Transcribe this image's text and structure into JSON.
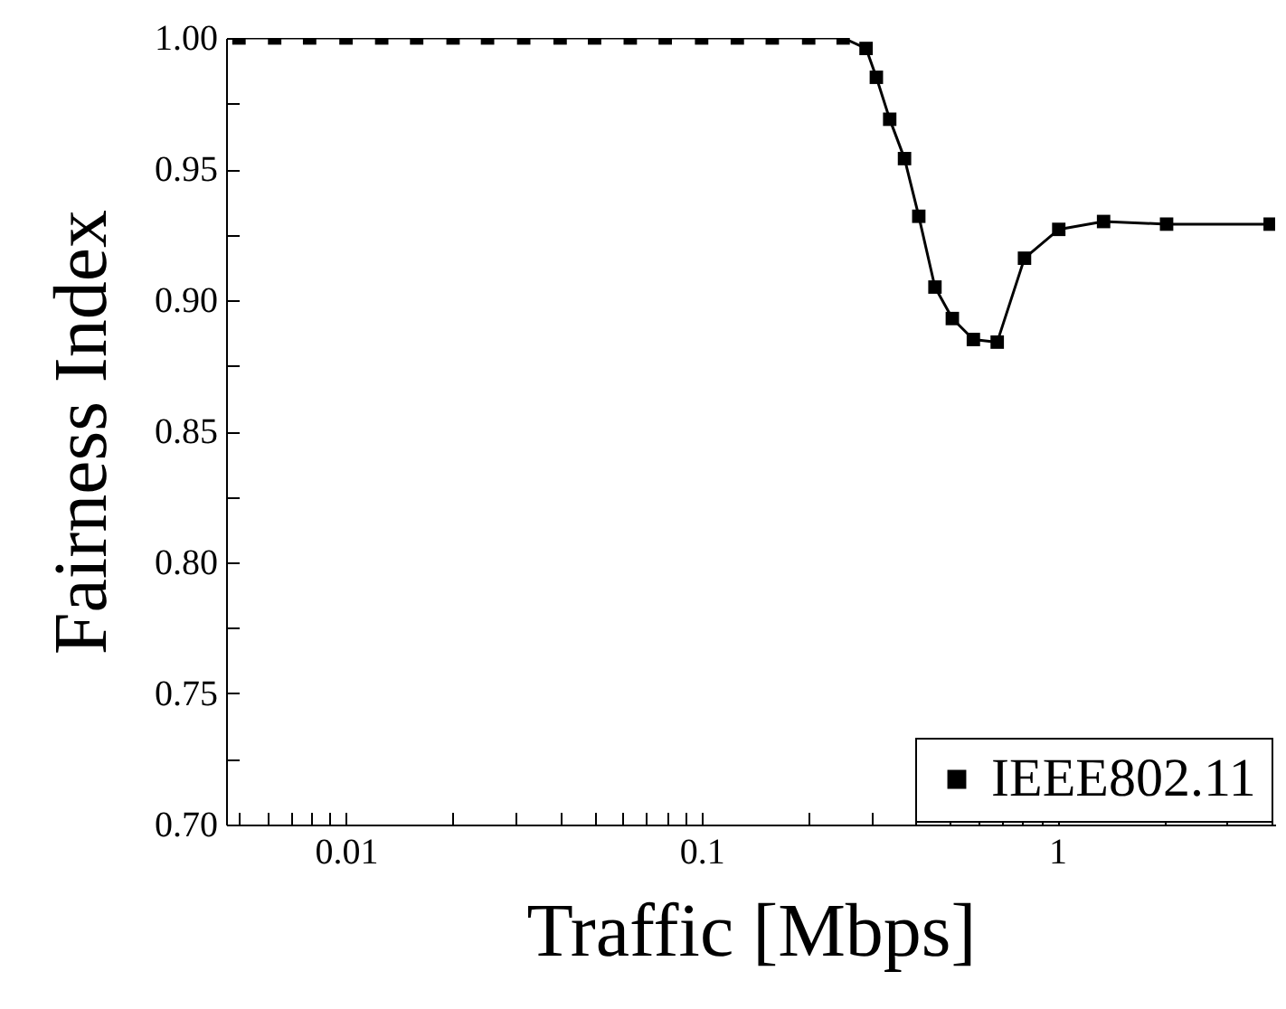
{
  "chart_data": {
    "type": "line",
    "xlabel": "Traffic [Mbps]",
    "ylabel": "Fairness Index",
    "log": "x",
    "xlim": [
      0.0046,
      4.1
    ],
    "ylim": [
      0.7,
      1.0
    ],
    "xticks": [
      {
        "value": 0.005,
        "label": null
      },
      {
        "value": 0.006,
        "label": null
      },
      {
        "value": 0.007,
        "label": null
      },
      {
        "value": 0.008,
        "label": null
      },
      {
        "value": 0.009,
        "label": null
      },
      0.01,
      {
        "value": 0.02,
        "label": null
      },
      {
        "value": 0.03,
        "label": null
      },
      {
        "value": 0.04,
        "label": null
      },
      {
        "value": 0.05,
        "label": null
      },
      {
        "value": 0.06,
        "label": null
      },
      {
        "value": 0.07,
        "label": null
      },
      {
        "value": 0.08,
        "label": null
      },
      {
        "value": 0.09,
        "label": null
      },
      0.1,
      {
        "value": 0.2,
        "label": null
      },
      {
        "value": 0.3,
        "label": null
      },
      {
        "value": 0.4,
        "label": null
      },
      {
        "value": 0.5,
        "label": null
      },
      {
        "value": 0.6,
        "label": null
      },
      {
        "value": 0.7,
        "label": null
      },
      {
        "value": 0.8,
        "label": null
      },
      {
        "value": 0.9,
        "label": null
      },
      1,
      {
        "value": 2,
        "label": null
      },
      {
        "value": 3,
        "label": null
      },
      {
        "value": 4,
        "label": null
      }
    ],
    "yticks": [
      {
        "value": 0.7,
        "label": "0.70"
      },
      {
        "value": 0.725,
        "label": null
      },
      0.75,
      {
        "value": 0.775,
        "label": null
      },
      {
        "value": 0.8,
        "label": "0.80"
      },
      {
        "value": 0.825,
        "label": null
      },
      0.85,
      {
        "value": 0.875,
        "label": null
      },
      {
        "value": 0.9,
        "label": "0.90"
      },
      {
        "value": 0.925,
        "label": null
      },
      0.95,
      {
        "value": 0.975,
        "label": null
      },
      {
        "value": 1.0,
        "label": "1.00"
      }
    ],
    "grid": false,
    "legend": "bottom right",
    "marker": "square",
    "line_style": "solid",
    "series": [
      {
        "name": "IEEE802.11",
        "color": "#000000",
        "x": [
          0.005,
          0.0063,
          0.0079,
          0.01,
          0.0126,
          0.0158,
          0.02,
          0.025,
          0.0316,
          0.04,
          0.05,
          0.063,
          0.079,
          0.1,
          0.126,
          0.158,
          0.2,
          0.25,
          0.29,
          0.31,
          0.338,
          0.372,
          0.408,
          0.453,
          0.507,
          0.581,
          0.678,
          0.809,
          1.01,
          1.35,
          2.03,
          3.97
        ],
        "values": [
          1.0,
          1.0,
          1.0,
          1.0,
          1.0,
          1.0,
          1.0,
          1.0,
          1.0,
          1.0,
          1.0,
          1.0,
          1.0,
          1.0,
          1.0,
          1.0,
          1.0,
          1.0,
          0.996,
          0.985,
          0.969,
          0.954,
          0.932,
          0.905,
          0.893,
          0.885,
          0.884,
          0.916,
          0.927,
          0.93,
          0.929,
          0.929
        ]
      }
    ]
  }
}
